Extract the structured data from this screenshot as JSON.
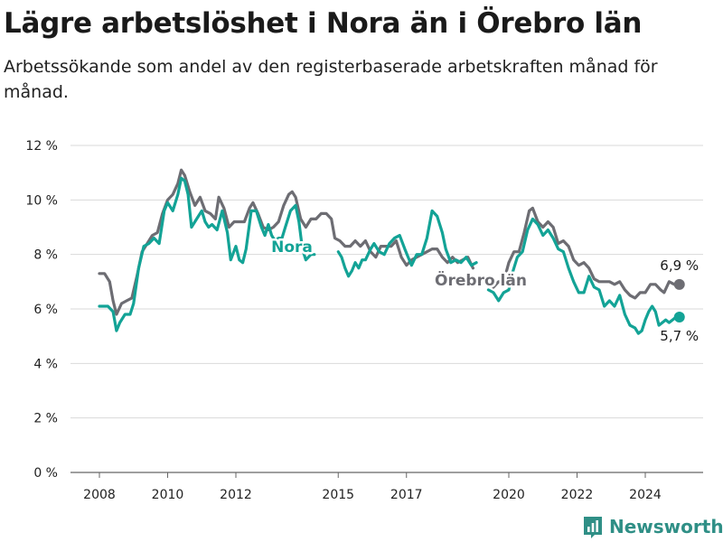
{
  "title": "Lägre arbetslöshet i Nora än i Örebro län",
  "subtitle": "Arbetssökande som andel av den registerbaserade arbetskraften månad för månad.",
  "brand": "Newsworthy",
  "colors": {
    "nora": "#13a396",
    "lan": "#6d6d73",
    "grid": "#d9d9d9",
    "brand": "#2f8f86"
  },
  "chart_data": {
    "type": "line",
    "y_ticks": [
      "0 %",
      "2 %",
      "4 %",
      "6 %",
      "8 %",
      "10 %",
      "12 %"
    ],
    "x_ticks": [
      "2008",
      "2010",
      "2012",
      "2015",
      "2017",
      "2020",
      "2022",
      "2024"
    ],
    "ylim": [
      0,
      12
    ],
    "series": [
      {
        "name": "Nora",
        "end_label": "5,7 %",
        "points": [
          [
            2008.0,
            6.1
          ],
          [
            2008.25,
            6.1
          ],
          [
            2008.4,
            5.9
          ],
          [
            2008.5,
            5.2
          ],
          [
            2008.6,
            5.5
          ],
          [
            2008.75,
            5.8
          ],
          [
            2008.9,
            5.8
          ],
          [
            2009.0,
            6.2
          ],
          [
            2009.15,
            7.5
          ],
          [
            2009.3,
            8.3
          ],
          [
            2009.45,
            8.4
          ],
          [
            2009.6,
            8.6
          ],
          [
            2009.75,
            8.4
          ],
          [
            2009.9,
            9.6
          ],
          [
            2010.0,
            9.9
          ],
          [
            2010.15,
            9.6
          ],
          [
            2010.3,
            10.2
          ],
          [
            2010.4,
            10.8
          ],
          [
            2010.5,
            10.7
          ],
          [
            2010.6,
            10.2
          ],
          [
            2010.7,
            9.0
          ],
          [
            2010.85,
            9.3
          ],
          [
            2011.0,
            9.6
          ],
          [
            2011.1,
            9.2
          ],
          [
            2011.2,
            9.0
          ],
          [
            2011.3,
            9.1
          ],
          [
            2011.45,
            8.9
          ],
          [
            2011.6,
            9.6
          ],
          [
            2011.75,
            8.8
          ],
          [
            2011.85,
            7.8
          ],
          [
            2012.0,
            8.3
          ],
          [
            2012.1,
            7.8
          ],
          [
            2012.2,
            7.7
          ],
          [
            2012.3,
            8.2
          ],
          [
            2012.45,
            9.6
          ],
          [
            2012.6,
            9.6
          ],
          [
            2012.75,
            9.0
          ],
          [
            2012.85,
            8.7
          ],
          [
            2012.95,
            9.1
          ],
          [
            2013.05,
            8.7
          ],
          [
            2013.15,
            8.5
          ],
          [
            2013.25,
            8.6
          ],
          [
            2013.35,
            8.6
          ],
          [
            2013.45,
            9.0
          ],
          [
            2013.6,
            9.6
          ],
          [
            2013.75,
            9.8
          ],
          [
            2013.85,
            9.2
          ],
          [
            2013.95,
            8.2
          ],
          [
            2014.05,
            7.8
          ],
          [
            2014.2,
            8.0
          ],
          [
            2014.3,
            8.0
          ]
        ],
        "points2": [
          [
            2015.0,
            8.1
          ],
          [
            2015.1,
            7.9
          ],
          [
            2015.2,
            7.5
          ],
          [
            2015.3,
            7.2
          ],
          [
            2015.4,
            7.4
          ],
          [
            2015.5,
            7.7
          ],
          [
            2015.6,
            7.5
          ],
          [
            2015.7,
            7.8
          ],
          [
            2015.8,
            7.8
          ],
          [
            2015.95,
            8.2
          ],
          [
            2016.05,
            8.4
          ],
          [
            2016.2,
            8.1
          ],
          [
            2016.35,
            8.0
          ],
          [
            2016.5,
            8.4
          ],
          [
            2016.65,
            8.6
          ],
          [
            2016.8,
            8.7
          ],
          [
            2016.95,
            8.2
          ],
          [
            2017.05,
            7.9
          ],
          [
            2017.15,
            7.6
          ],
          [
            2017.3,
            8.0
          ],
          [
            2017.45,
            8.0
          ],
          [
            2017.6,
            8.6
          ],
          [
            2017.75,
            9.6
          ],
          [
            2017.9,
            9.4
          ],
          [
            2018.05,
            8.8
          ],
          [
            2018.15,
            8.2
          ],
          [
            2018.3,
            7.7
          ],
          [
            2018.45,
            7.8
          ],
          [
            2018.6,
            7.7
          ],
          [
            2018.75,
            7.9
          ],
          [
            2018.9,
            7.6
          ],
          [
            2019.05,
            7.7
          ]
        ],
        "points3": [
          [
            2019.4,
            6.7
          ],
          [
            2019.55,
            6.6
          ],
          [
            2019.7,
            6.3
          ],
          [
            2019.85,
            6.6
          ],
          [
            2020.0,
            6.7
          ],
          [
            2020.1,
            7.3
          ],
          [
            2020.25,
            7.9
          ],
          [
            2020.4,
            8.1
          ],
          [
            2020.55,
            8.9
          ],
          [
            2020.7,
            9.3
          ],
          [
            2020.85,
            9.1
          ],
          [
            2021.0,
            8.7
          ],
          [
            2021.15,
            8.9
          ],
          [
            2021.3,
            8.6
          ],
          [
            2021.45,
            8.2
          ],
          [
            2021.6,
            8.1
          ],
          [
            2021.75,
            7.5
          ],
          [
            2021.9,
            7.0
          ],
          [
            2022.05,
            6.6
          ],
          [
            2022.2,
            6.6
          ],
          [
            2022.35,
            7.2
          ],
          [
            2022.5,
            6.8
          ],
          [
            2022.65,
            6.7
          ],
          [
            2022.8,
            6.1
          ],
          [
            2022.95,
            6.3
          ],
          [
            2023.1,
            6.1
          ],
          [
            2023.25,
            6.5
          ],
          [
            2023.4,
            5.8
          ],
          [
            2023.55,
            5.4
          ],
          [
            2023.7,
            5.3
          ],
          [
            2023.8,
            5.1
          ],
          [
            2023.9,
            5.2
          ],
          [
            2024.0,
            5.6
          ],
          [
            2024.1,
            5.9
          ],
          [
            2024.2,
            6.1
          ],
          [
            2024.3,
            5.9
          ],
          [
            2024.4,
            5.4
          ],
          [
            2024.5,
            5.5
          ],
          [
            2024.6,
            5.6
          ],
          [
            2024.7,
            5.5
          ],
          [
            2024.8,
            5.6
          ],
          [
            2024.9,
            5.7
          ],
          [
            2025.0,
            5.7
          ]
        ]
      },
      {
        "name": "Örebro län",
        "end_label": "6,9 %",
        "points": [
          [
            2008.0,
            7.3
          ],
          [
            2008.15,
            7.3
          ],
          [
            2008.3,
            7.0
          ],
          [
            2008.4,
            6.3
          ],
          [
            2008.5,
            5.8
          ],
          [
            2008.65,
            6.2
          ],
          [
            2008.8,
            6.3
          ],
          [
            2008.95,
            6.4
          ],
          [
            2009.1,
            7.2
          ],
          [
            2009.25,
            8.1
          ],
          [
            2009.4,
            8.4
          ],
          [
            2009.55,
            8.7
          ],
          [
            2009.7,
            8.8
          ],
          [
            2009.85,
            9.5
          ],
          [
            2010.0,
            10.0
          ],
          [
            2010.15,
            10.2
          ],
          [
            2010.3,
            10.6
          ],
          [
            2010.4,
            11.1
          ],
          [
            2010.5,
            10.9
          ],
          [
            2010.65,
            10.3
          ],
          [
            2010.8,
            9.8
          ],
          [
            2010.95,
            10.1
          ],
          [
            2011.1,
            9.6
          ],
          [
            2011.25,
            9.5
          ],
          [
            2011.4,
            9.3
          ],
          [
            2011.5,
            10.1
          ],
          [
            2011.65,
            9.7
          ],
          [
            2011.8,
            9.0
          ],
          [
            2011.95,
            9.2
          ],
          [
            2012.1,
            9.2
          ],
          [
            2012.25,
            9.2
          ],
          [
            2012.4,
            9.7
          ],
          [
            2012.5,
            9.9
          ],
          [
            2012.65,
            9.5
          ],
          [
            2012.8,
            9.0
          ],
          [
            2012.95,
            8.9
          ],
          [
            2013.1,
            9.0
          ],
          [
            2013.25,
            9.2
          ],
          [
            2013.4,
            9.8
          ],
          [
            2013.55,
            10.2
          ],
          [
            2013.65,
            10.3
          ],
          [
            2013.75,
            10.1
          ],
          [
            2013.9,
            9.3
          ],
          [
            2014.05,
            9.0
          ],
          [
            2014.2,
            9.3
          ],
          [
            2014.35,
            9.3
          ],
          [
            2014.5,
            9.5
          ],
          [
            2014.65,
            9.5
          ],
          [
            2014.8,
            9.3
          ],
          [
            2014.9,
            8.6
          ],
          [
            2015.05,
            8.5
          ],
          [
            2015.2,
            8.3
          ],
          [
            2015.35,
            8.3
          ],
          [
            2015.5,
            8.5
          ],
          [
            2015.65,
            8.3
          ],
          [
            2015.8,
            8.5
          ],
          [
            2015.95,
            8.1
          ],
          [
            2016.1,
            7.9
          ],
          [
            2016.25,
            8.3
          ],
          [
            2016.4,
            8.3
          ],
          [
            2016.55,
            8.3
          ],
          [
            2016.7,
            8.5
          ],
          [
            2016.85,
            7.9
          ],
          [
            2017.0,
            7.6
          ],
          [
            2017.15,
            7.8
          ],
          [
            2017.3,
            7.9
          ],
          [
            2017.45,
            8.0
          ],
          [
            2017.6,
            8.1
          ],
          [
            2017.75,
            8.2
          ],
          [
            2017.9,
            8.2
          ],
          [
            2018.05,
            7.9
          ],
          [
            2018.2,
            7.7
          ],
          [
            2018.35,
            7.9
          ],
          [
            2018.5,
            7.7
          ],
          [
            2018.65,
            7.8
          ],
          [
            2018.8,
            7.9
          ],
          [
            2018.95,
            7.5
          ]
        ],
        "points2": [
          [
            2019.55,
            6.8
          ],
          [
            2019.7,
            7.0
          ],
          [
            2019.85,
            7.0
          ],
          [
            2020.0,
            7.7
          ],
          [
            2020.15,
            8.1
          ],
          [
            2020.3,
            8.1
          ],
          [
            2020.45,
            8.8
          ],
          [
            2020.6,
            9.6
          ],
          [
            2020.7,
            9.7
          ],
          [
            2020.85,
            9.2
          ],
          [
            2021.0,
            9.0
          ],
          [
            2021.15,
            9.2
          ],
          [
            2021.3,
            9.0
          ],
          [
            2021.45,
            8.4
          ],
          [
            2021.6,
            8.5
          ],
          [
            2021.75,
            8.3
          ],
          [
            2021.9,
            7.8
          ],
          [
            2022.05,
            7.6
          ],
          [
            2022.2,
            7.7
          ],
          [
            2022.35,
            7.5
          ],
          [
            2022.5,
            7.1
          ],
          [
            2022.65,
            7.0
          ],
          [
            2022.8,
            7.0
          ],
          [
            2022.95,
            7.0
          ],
          [
            2023.1,
            6.9
          ],
          [
            2023.25,
            7.0
          ],
          [
            2023.4,
            6.7
          ],
          [
            2023.55,
            6.5
          ],
          [
            2023.7,
            6.4
          ],
          [
            2023.85,
            6.6
          ],
          [
            2024.0,
            6.6
          ],
          [
            2024.15,
            6.9
          ],
          [
            2024.3,
            6.9
          ],
          [
            2024.45,
            6.7
          ],
          [
            2024.55,
            6.6
          ],
          [
            2024.7,
            7.0
          ],
          [
            2024.85,
            6.9
          ],
          [
            2025.0,
            6.9
          ]
        ]
      }
    ]
  }
}
